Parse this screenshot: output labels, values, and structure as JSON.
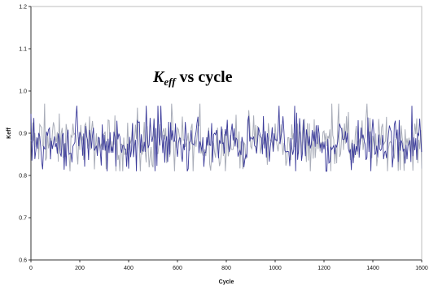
{
  "chart_data": {
    "type": "line",
    "title": {
      "symbol": "K",
      "subscript": "eff",
      "text": " vs cycle"
    },
    "xlabel": "Cycle",
    "ylabel": "Keff",
    "xlim": [
      0,
      1600
    ],
    "ylim": [
      0.6,
      1.2
    ],
    "x_ticks": [
      0,
      200,
      400,
      600,
      800,
      1000,
      1200,
      1400,
      1600
    ],
    "x_tick_labels": [
      "0",
      "200",
      "400",
      "600",
      "800",
      "1000",
      "1200",
      "1400",
      "1600"
    ],
    "y_ticks": [
      0.6,
      0.7,
      0.8,
      0.9,
      1.0,
      1.1,
      1.2
    ],
    "y_tick_labels": [
      "0.6",
      "0.7",
      "0.8",
      "0.9",
      "1.0",
      "1.1",
      "1.2"
    ],
    "grid": false,
    "legend": "none",
    "series": [
      {
        "color": "#a9adb9",
        "x_range": [
          0,
          1600
        ],
        "step": 4,
        "mean": 0.878,
        "min": 0.81,
        "max": 0.97
      },
      {
        "color": "#3b3b9a",
        "x_range": [
          0,
          1600
        ],
        "step": 4,
        "mean": 0.877,
        "min": 0.81,
        "max": 0.965
      }
    ]
  }
}
